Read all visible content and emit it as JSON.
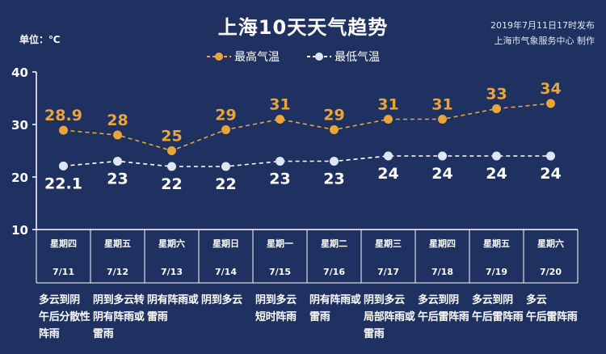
{
  "header": {
    "title": "上海10天天气趋势",
    "unit": "单位：℃",
    "publish_time": "2019年7月11日17时发布",
    "publisher": "上海市气象服务中心 制作"
  },
  "chart_data": {
    "type": "line",
    "x": [
      "7/11",
      "7/12",
      "7/13",
      "7/14",
      "7/15",
      "7/16",
      "7/17",
      "7/18",
      "7/19",
      "7/20"
    ],
    "weekdays": [
      "星期四",
      "星期五",
      "星期六",
      "星期日",
      "星期一",
      "星期二",
      "星期三",
      "星期四",
      "星期五",
      "星期六"
    ],
    "series": [
      {
        "name": "最高气温",
        "color": "#e9a53a",
        "values": [
          28.9,
          28,
          25,
          29,
          31,
          29,
          31,
          31,
          33,
          34
        ]
      },
      {
        "name": "最低气温",
        "color": "#ffffff",
        "values": [
          22.1,
          23,
          22,
          22,
          23,
          23,
          24,
          24,
          24,
          24
        ]
      }
    ],
    "ylim": [
      10,
      40
    ],
    "yticks": [
      10,
      20,
      30,
      40
    ],
    "grid": false,
    "legend_position": "top-center"
  },
  "weather_descriptions": [
    "多云到阴\n午后分散性\n阵雨",
    "阴到多云转\n阴有阵雨或\n雷雨",
    "阴有阵雨或\n雷雨",
    "阴到多云",
    "阴到多云\n短时阵雨",
    "阴有阵雨或\n雷雨",
    "阴到多云\n局部阵雨或\n雷雨",
    "多云到阴\n午后雷阵雨",
    "多云到阴\n午后雷阵雨",
    "多云\n午后雷阵雨"
  ]
}
